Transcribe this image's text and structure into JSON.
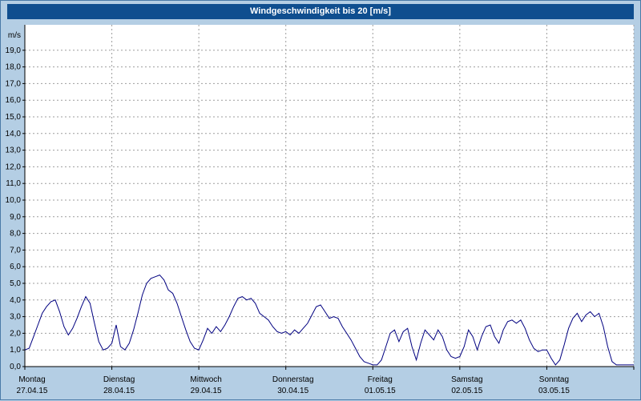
{
  "title": "Windgeschwindigkeit bis 20 [m/s]",
  "colors": {
    "background": "#b4cee4",
    "frame_border": "#4a7aa8",
    "title_bar_bg": "#0f4e8f",
    "title_text": "#ffffff",
    "plot_bg": "#ffffff",
    "grid": "#9e9e9e",
    "axis": "#000000",
    "line": "#000080"
  },
  "chart_data": {
    "type": "line",
    "title": "Windgeschwindigkeit bis 20 [m/s]",
    "ylabel_unit": "m/s",
    "ylim": [
      0,
      20
    ],
    "ytick_interval": 1,
    "grid": true,
    "legend": "none",
    "ytick_labels": [
      "0,0",
      "1,0",
      "2,0",
      "3,0",
      "4,0",
      "5,0",
      "6,0",
      "7,0",
      "8,0",
      "9,0",
      "10,0",
      "11,0",
      "12,0",
      "13,0",
      "14,0",
      "15,0",
      "16,0",
      "17,0",
      "18,0",
      "19,0"
    ],
    "days": [
      {
        "name": "Montag",
        "date": "27.04.15"
      },
      {
        "name": "Dienstag",
        "date": "28.04.15"
      },
      {
        "name": "Mittwoch",
        "date": "29.04.15"
      },
      {
        "name": "Donnerstag",
        "date": "30.04.15"
      },
      {
        "name": "Freitag",
        "date": "01.05.15"
      },
      {
        "name": "Samstag",
        "date": "02.05.15"
      },
      {
        "name": "Sonntag",
        "date": "03.05.15"
      }
    ],
    "series": [
      {
        "name": "Windgeschwindigkeit",
        "color": "#000080",
        "x_unit": "days_from_27_04_15",
        "points": [
          [
            0,
            1.0
          ],
          [
            0.05,
            1.1
          ],
          [
            0.1,
            1.8
          ],
          [
            0.15,
            2.5
          ],
          [
            0.2,
            3.2
          ],
          [
            0.25,
            3.6
          ],
          [
            0.3,
            3.9
          ],
          [
            0.35,
            4.0
          ],
          [
            0.4,
            3.3
          ],
          [
            0.45,
            2.4
          ],
          [
            0.5,
            1.9
          ],
          [
            0.55,
            2.3
          ],
          [
            0.6,
            2.9
          ],
          [
            0.65,
            3.6
          ],
          [
            0.7,
            4.2
          ],
          [
            0.75,
            3.8
          ],
          [
            0.8,
            2.6
          ],
          [
            0.85,
            1.5
          ],
          [
            0.9,
            1.0
          ],
          [
            0.95,
            1.1
          ],
          [
            1,
            1.4
          ],
          [
            1.05,
            2.5
          ],
          [
            1.1,
            1.2
          ],
          [
            1.15,
            1.0
          ],
          [
            1.2,
            1.4
          ],
          [
            1.25,
            2.2
          ],
          [
            1.3,
            3.2
          ],
          [
            1.35,
            4.3
          ],
          [
            1.4,
            5.0
          ],
          [
            1.45,
            5.3
          ],
          [
            1.5,
            5.4
          ],
          [
            1.55,
            5.5
          ],
          [
            1.6,
            5.2
          ],
          [
            1.65,
            4.6
          ],
          [
            1.7,
            4.4
          ],
          [
            1.75,
            3.8
          ],
          [
            1.8,
            3.0
          ],
          [
            1.85,
            2.2
          ],
          [
            1.9,
            1.5
          ],
          [
            1.95,
            1.1
          ],
          [
            2,
            1.0
          ],
          [
            2.05,
            1.6
          ],
          [
            2.1,
            2.3
          ],
          [
            2.15,
            2.0
          ],
          [
            2.2,
            2.4
          ],
          [
            2.25,
            2.1
          ],
          [
            2.3,
            2.5
          ],
          [
            2.35,
            3.0
          ],
          [
            2.4,
            3.6
          ],
          [
            2.45,
            4.1
          ],
          [
            2.5,
            4.2
          ],
          [
            2.55,
            4.0
          ],
          [
            2.6,
            4.1
          ],
          [
            2.65,
            3.8
          ],
          [
            2.7,
            3.2
          ],
          [
            2.75,
            3.0
          ],
          [
            2.8,
            2.8
          ],
          [
            2.85,
            2.4
          ],
          [
            2.9,
            2.1
          ],
          [
            2.95,
            2.0
          ],
          [
            3,
            2.1
          ],
          [
            3.05,
            1.9
          ],
          [
            3.1,
            2.2
          ],
          [
            3.15,
            2.0
          ],
          [
            3.2,
            2.3
          ],
          [
            3.25,
            2.6
          ],
          [
            3.3,
            3.1
          ],
          [
            3.35,
            3.6
          ],
          [
            3.4,
            3.7
          ],
          [
            3.45,
            3.3
          ],
          [
            3.5,
            2.9
          ],
          [
            3.55,
            3.0
          ],
          [
            3.6,
            2.9
          ],
          [
            3.65,
            2.4
          ],
          [
            3.7,
            2.0
          ],
          [
            3.75,
            1.6
          ],
          [
            3.8,
            1.1
          ],
          [
            3.85,
            0.6
          ],
          [
            3.9,
            0.3
          ],
          [
            3.95,
            0.2
          ],
          [
            4,
            0.1
          ],
          [
            4.05,
            0.1
          ],
          [
            4.1,
            0.4
          ],
          [
            4.15,
            1.2
          ],
          [
            4.2,
            2.0
          ],
          [
            4.25,
            2.2
          ],
          [
            4.3,
            1.5
          ],
          [
            4.35,
            2.1
          ],
          [
            4.4,
            2.3
          ],
          [
            4.45,
            1.2
          ],
          [
            4.5,
            0.4
          ],
          [
            4.55,
            1.4
          ],
          [
            4.6,
            2.2
          ],
          [
            4.65,
            1.9
          ],
          [
            4.7,
            1.6
          ],
          [
            4.75,
            2.2
          ],
          [
            4.8,
            1.8
          ],
          [
            4.85,
            1.0
          ],
          [
            4.9,
            0.6
          ],
          [
            4.95,
            0.5
          ],
          [
            5,
            0.6
          ],
          [
            5.05,
            1.2
          ],
          [
            5.1,
            2.2
          ],
          [
            5.15,
            1.8
          ],
          [
            5.2,
            1.0
          ],
          [
            5.25,
            1.8
          ],
          [
            5.3,
            2.4
          ],
          [
            5.35,
            2.5
          ],
          [
            5.4,
            1.8
          ],
          [
            5.45,
            1.4
          ],
          [
            5.5,
            2.2
          ],
          [
            5.55,
            2.7
          ],
          [
            5.6,
            2.8
          ],
          [
            5.65,
            2.6
          ],
          [
            5.7,
            2.8
          ],
          [
            5.75,
            2.3
          ],
          [
            5.8,
            1.6
          ],
          [
            5.85,
            1.1
          ],
          [
            5.9,
            0.9
          ],
          [
            5.95,
            1.0
          ],
          [
            6,
            1.0
          ],
          [
            6.05,
            0.5
          ],
          [
            6.1,
            0.1
          ],
          [
            6.15,
            0.4
          ],
          [
            6.2,
            1.3
          ],
          [
            6.25,
            2.3
          ],
          [
            6.3,
            2.9
          ],
          [
            6.35,
            3.2
          ],
          [
            6.4,
            2.7
          ],
          [
            6.45,
            3.1
          ],
          [
            6.5,
            3.3
          ],
          [
            6.55,
            3.0
          ],
          [
            6.6,
            3.2
          ],
          [
            6.65,
            2.4
          ],
          [
            6.7,
            1.2
          ],
          [
            6.75,
            0.3
          ],
          [
            6.8,
            0.1
          ],
          [
            6.85,
            0.1
          ],
          [
            6.9,
            0.1
          ],
          [
            6.95,
            0.1
          ],
          [
            7,
            0.1
          ]
        ]
      }
    ]
  }
}
